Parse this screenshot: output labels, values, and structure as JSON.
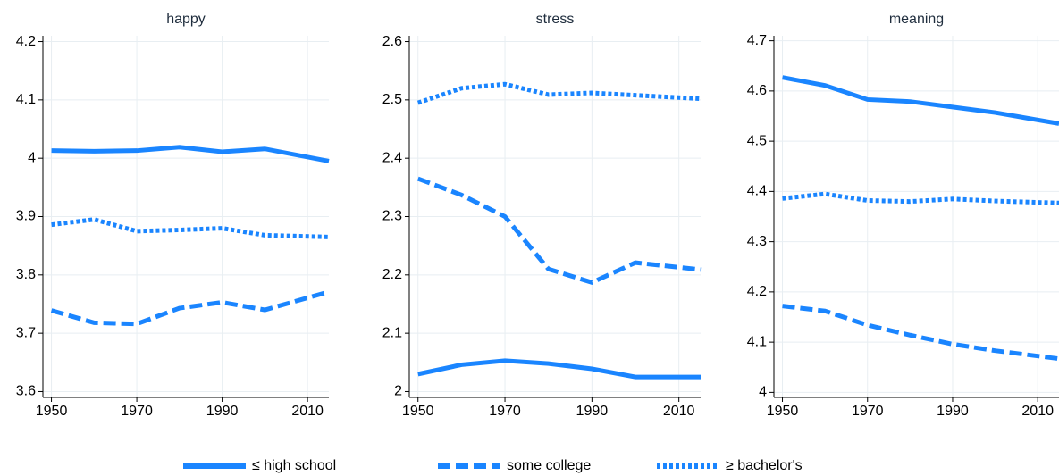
{
  "chart_data": [
    {
      "type": "line",
      "title": "happy",
      "x": [
        1950,
        1960,
        1970,
        1980,
        1990,
        2000,
        2015
      ],
      "xlim": [
        1948,
        2015
      ],
      "xticks": [
        1950,
        1970,
        1990,
        2010
      ],
      "ylim": [
        3.59,
        4.21
      ],
      "yticks": [
        3.6,
        3.7,
        3.8,
        3.9,
        4.0,
        4.1,
        4.2
      ],
      "grid": true,
      "series": [
        {
          "name": "≤ high school",
          "color": "#1a85ff",
          "dash": "solid",
          "values": [
            4.013,
            4.012,
            4.013,
            4.019,
            4.011,
            4.016,
            3.995
          ]
        },
        {
          "name": "some college",
          "color": "#1a85ff",
          "dash": "dash",
          "values": [
            3.739,
            3.718,
            3.716,
            3.743,
            3.753,
            3.74,
            3.771
          ]
        },
        {
          "name": "≥ bachelor's",
          "color": "#1a85ff",
          "dash": "dot",
          "values": [
            3.886,
            3.895,
            3.875,
            3.877,
            3.88,
            3.868,
            3.865
          ]
        }
      ]
    },
    {
      "type": "line",
      "title": "stress",
      "x": [
        1950,
        1960,
        1970,
        1980,
        1990,
        2000,
        2015
      ],
      "xlim": [
        1948,
        2015
      ],
      "xticks": [
        1950,
        1970,
        1990,
        2010
      ],
      "ylim": [
        1.99,
        2.61
      ],
      "yticks": [
        2.0,
        2.1,
        2.2,
        2.3,
        2.4,
        2.5,
        2.6
      ],
      "grid": true,
      "series": [
        {
          "color": "#1a85ff",
          "dash": "solid",
          "values": [
            2.03,
            2.046,
            2.053,
            2.048,
            2.039,
            2.025,
            2.025
          ]
        },
        {
          "color": "#1a85ff",
          "dash": "dash",
          "values": [
            2.365,
            2.337,
            2.3,
            2.21,
            2.187,
            2.221,
            2.209
          ]
        },
        {
          "color": "#1a85ff",
          "dash": "dot",
          "values": [
            2.495,
            2.52,
            2.527,
            2.509,
            2.512,
            2.508,
            2.502
          ]
        }
      ]
    },
    {
      "type": "line",
      "title": "meaning",
      "x": [
        1950,
        1960,
        1970,
        1980,
        1990,
        2000,
        2015
      ],
      "xlim": [
        1948,
        2015
      ],
      "xticks": [
        1950,
        1970,
        1990,
        2010
      ],
      "ylim": [
        3.99,
        4.71
      ],
      "yticks": [
        4.0,
        4.1,
        4.2,
        4.3,
        4.4,
        4.5,
        4.6,
        4.7
      ],
      "grid": true,
      "series": [
        {
          "color": "#1a85ff",
          "dash": "solid",
          "values": [
            4.627,
            4.611,
            4.583,
            4.579,
            4.568,
            4.557,
            4.535
          ]
        },
        {
          "color": "#1a85ff",
          "dash": "dash",
          "values": [
            4.172,
            4.162,
            4.134,
            4.114,
            4.096,
            4.083,
            4.067
          ]
        },
        {
          "color": "#1a85ff",
          "dash": "dot",
          "values": [
            4.386,
            4.395,
            4.382,
            4.38,
            4.385,
            4.381,
            4.377
          ]
        }
      ]
    }
  ]
}
